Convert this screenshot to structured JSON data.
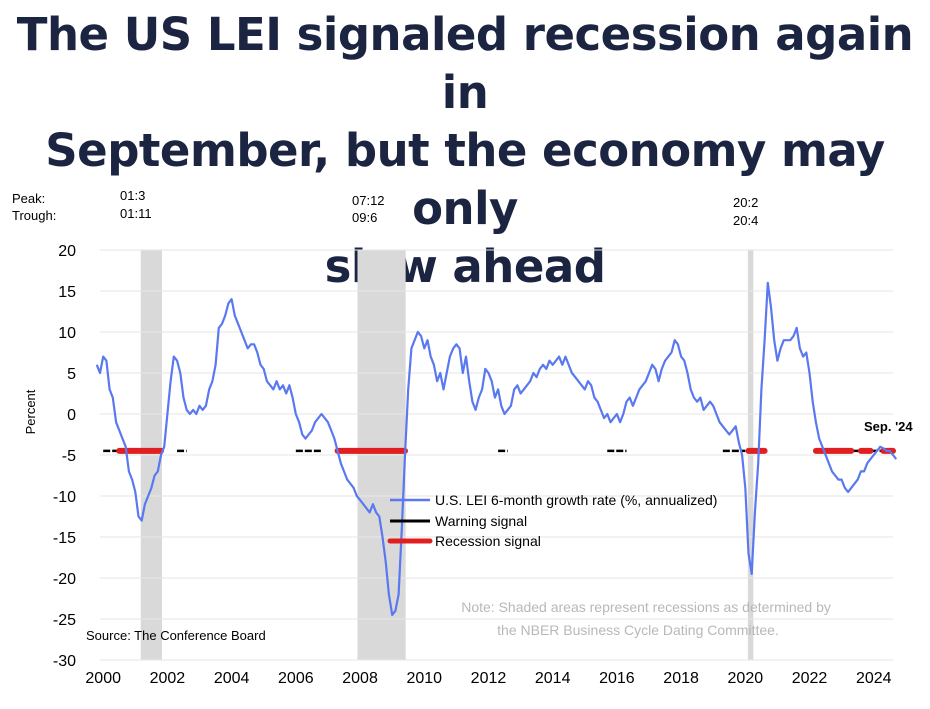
{
  "title": "The US LEI signaled recession again in\nSeptember, but the economy may only\nslow ahead",
  "recession_header": {
    "peak_label": "Peak:",
    "trough_label": "Trough:"
  },
  "colors": {
    "title": "#1b2440",
    "lei": "#5a78f0",
    "warning": "#000000",
    "recession_signal": "#e02020",
    "shade": "#d9d9d9"
  },
  "source": "Source: The Conference Board",
  "note": "Note: Shaded areas represent recessions as determined by\nthe NBER Business Cycle Dating Committee.",
  "end_annotation": "Sep. '24",
  "chart_data": {
    "type": "line",
    "ylabel": "Percent",
    "xlabel": "",
    "ylim": [
      -30,
      20
    ],
    "xlim": [
      2000,
      2025
    ],
    "yticks": [
      20,
      15,
      10,
      5,
      0,
      -5,
      -10,
      -15,
      -20,
      -25,
      -30
    ],
    "xticks": [
      2000,
      2002,
      2004,
      2006,
      2008,
      2010,
      2012,
      2014,
      2016,
      2018,
      2020,
      2022,
      2024
    ],
    "grid": "horizontal",
    "legend_position": "center-right",
    "recessions": [
      {
        "peak": "01:3",
        "trough": "01:11",
        "start": 2001.17,
        "end": 2001.83
      },
      {
        "peak": "07:12",
        "trough": "09:6",
        "start": 2007.92,
        "end": 2009.42
      },
      {
        "peak": "20:2",
        "trough": "20:4",
        "start": 2020.08,
        "end": 2020.25
      }
    ],
    "series": [
      {
        "name": "U.S. LEI 6-month growth rate (%, annualized)",
        "type": "line",
        "points": [
          [
            1999.8,
            6
          ],
          [
            1999.9,
            5
          ],
          [
            2000.0,
            7
          ],
          [
            2000.1,
            6.5
          ],
          [
            2000.2,
            3
          ],
          [
            2000.3,
            2
          ],
          [
            2000.4,
            -1
          ],
          [
            2000.5,
            -2
          ],
          [
            2000.6,
            -3
          ],
          [
            2000.7,
            -4
          ],
          [
            2000.8,
            -7
          ],
          [
            2000.9,
            -8
          ],
          [
            2001.0,
            -9.5
          ],
          [
            2001.1,
            -12.5
          ],
          [
            2001.2,
            -13
          ],
          [
            2001.3,
            -11
          ],
          [
            2001.4,
            -10
          ],
          [
            2001.5,
            -9
          ],
          [
            2001.6,
            -7.5
          ],
          [
            2001.7,
            -7
          ],
          [
            2001.8,
            -5
          ],
          [
            2001.9,
            -4
          ],
          [
            2002.0,
            0
          ],
          [
            2002.1,
            4
          ],
          [
            2002.2,
            7
          ],
          [
            2002.3,
            6.5
          ],
          [
            2002.4,
            5
          ],
          [
            2002.5,
            2
          ],
          [
            2002.6,
            0.5
          ],
          [
            2002.7,
            0
          ],
          [
            2002.8,
            0.5
          ],
          [
            2002.9,
            0
          ],
          [
            2003.0,
            1
          ],
          [
            2003.1,
            0.5
          ],
          [
            2003.2,
            1
          ],
          [
            2003.3,
            3
          ],
          [
            2003.4,
            4
          ],
          [
            2003.5,
            6
          ],
          [
            2003.6,
            10.5
          ],
          [
            2003.7,
            11
          ],
          [
            2003.8,
            12
          ],
          [
            2003.9,
            13.5
          ],
          [
            2004.0,
            14
          ],
          [
            2004.1,
            12
          ],
          [
            2004.2,
            11
          ],
          [
            2004.3,
            10
          ],
          [
            2004.4,
            9
          ],
          [
            2004.5,
            8
          ],
          [
            2004.6,
            8.5
          ],
          [
            2004.7,
            8.5
          ],
          [
            2004.8,
            7.5
          ],
          [
            2004.9,
            6
          ],
          [
            2005.0,
            5.5
          ],
          [
            2005.1,
            4
          ],
          [
            2005.2,
            3.5
          ],
          [
            2005.3,
            3
          ],
          [
            2005.4,
            4
          ],
          [
            2005.5,
            3
          ],
          [
            2005.6,
            3.5
          ],
          [
            2005.7,
            2.5
          ],
          [
            2005.8,
            3.5
          ],
          [
            2005.9,
            2
          ],
          [
            2006.0,
            0
          ],
          [
            2006.1,
            -1
          ],
          [
            2006.2,
            -2.5
          ],
          [
            2006.3,
            -3
          ],
          [
            2006.4,
            -2.5
          ],
          [
            2006.5,
            -2
          ],
          [
            2006.6,
            -1
          ],
          [
            2006.7,
            -0.5
          ],
          [
            2006.8,
            0
          ],
          [
            2006.9,
            -0.5
          ],
          [
            2007.0,
            -1
          ],
          [
            2007.1,
            -2
          ],
          [
            2007.2,
            -3
          ],
          [
            2007.3,
            -4.5
          ],
          [
            2007.4,
            -6
          ],
          [
            2007.5,
            -7
          ],
          [
            2007.6,
            -8
          ],
          [
            2007.7,
            -8.5
          ],
          [
            2007.8,
            -9
          ],
          [
            2007.9,
            -10
          ],
          [
            2008.0,
            -10.5
          ],
          [
            2008.1,
            -11
          ],
          [
            2008.2,
            -11.5
          ],
          [
            2008.3,
            -12
          ],
          [
            2008.4,
            -11
          ],
          [
            2008.5,
            -12
          ],
          [
            2008.6,
            -12.5
          ],
          [
            2008.7,
            -15
          ],
          [
            2008.8,
            -18
          ],
          [
            2008.9,
            -22
          ],
          [
            2009.0,
            -24.5
          ],
          [
            2009.1,
            -24
          ],
          [
            2009.2,
            -22
          ],
          [
            2009.3,
            -14
          ],
          [
            2009.4,
            -5
          ],
          [
            2009.5,
            3
          ],
          [
            2009.6,
            8
          ],
          [
            2009.7,
            9
          ],
          [
            2009.8,
            10
          ],
          [
            2009.9,
            9.5
          ],
          [
            2010.0,
            8
          ],
          [
            2010.1,
            9
          ],
          [
            2010.2,
            7
          ],
          [
            2010.3,
            6
          ],
          [
            2010.4,
            4
          ],
          [
            2010.5,
            5
          ],
          [
            2010.6,
            3
          ],
          [
            2010.7,
            5
          ],
          [
            2010.8,
            7
          ],
          [
            2010.9,
            8
          ],
          [
            2011.0,
            8.5
          ],
          [
            2011.1,
            8
          ],
          [
            2011.2,
            5
          ],
          [
            2011.3,
            7
          ],
          [
            2011.4,
            4
          ],
          [
            2011.5,
            1.5
          ],
          [
            2011.6,
            0.5
          ],
          [
            2011.7,
            2
          ],
          [
            2011.8,
            3
          ],
          [
            2011.9,
            5.5
          ],
          [
            2012.0,
            5
          ],
          [
            2012.1,
            4
          ],
          [
            2012.2,
            2
          ],
          [
            2012.3,
            3
          ],
          [
            2012.4,
            1
          ],
          [
            2012.5,
            0
          ],
          [
            2012.6,
            0.5
          ],
          [
            2012.7,
            1
          ],
          [
            2012.8,
            3
          ],
          [
            2012.9,
            3.5
          ],
          [
            2013.0,
            2.5
          ],
          [
            2013.1,
            3
          ],
          [
            2013.2,
            3.5
          ],
          [
            2013.3,
            4
          ],
          [
            2013.4,
            5
          ],
          [
            2013.5,
            4.5
          ],
          [
            2013.6,
            5.5
          ],
          [
            2013.7,
            6
          ],
          [
            2013.8,
            5.5
          ],
          [
            2013.9,
            6.5
          ],
          [
            2014.0,
            6
          ],
          [
            2014.1,
            6.5
          ],
          [
            2014.2,
            7
          ],
          [
            2014.3,
            6
          ],
          [
            2014.4,
            7
          ],
          [
            2014.5,
            6
          ],
          [
            2014.6,
            5
          ],
          [
            2014.7,
            4.5
          ],
          [
            2014.8,
            4
          ],
          [
            2014.9,
            3.5
          ],
          [
            2015.0,
            3
          ],
          [
            2015.1,
            4
          ],
          [
            2015.2,
            3.5
          ],
          [
            2015.3,
            2
          ],
          [
            2015.4,
            1.5
          ],
          [
            2015.5,
            0.5
          ],
          [
            2015.6,
            -0.5
          ],
          [
            2015.7,
            0
          ],
          [
            2015.8,
            -1
          ],
          [
            2015.9,
            -0.5
          ],
          [
            2016.0,
            0
          ],
          [
            2016.1,
            -1
          ],
          [
            2016.2,
            0
          ],
          [
            2016.3,
            1.5
          ],
          [
            2016.4,
            2
          ],
          [
            2016.5,
            1
          ],
          [
            2016.6,
            2
          ],
          [
            2016.7,
            3
          ],
          [
            2016.8,
            3.5
          ],
          [
            2016.9,
            4
          ],
          [
            2017.0,
            5
          ],
          [
            2017.1,
            6
          ],
          [
            2017.2,
            5.5
          ],
          [
            2017.3,
            4
          ],
          [
            2017.4,
            5.5
          ],
          [
            2017.5,
            6.5
          ],
          [
            2017.6,
            7
          ],
          [
            2017.7,
            7.5
          ],
          [
            2017.8,
            9
          ],
          [
            2017.9,
            8.5
          ],
          [
            2018.0,
            7
          ],
          [
            2018.1,
            6.5
          ],
          [
            2018.2,
            5
          ],
          [
            2018.3,
            3
          ],
          [
            2018.4,
            2
          ],
          [
            2018.5,
            1.5
          ],
          [
            2018.6,
            2
          ],
          [
            2018.7,
            0.5
          ],
          [
            2018.8,
            1
          ],
          [
            2018.9,
            1.5
          ],
          [
            2019.0,
            1
          ],
          [
            2019.1,
            0
          ],
          [
            2019.2,
            -1
          ],
          [
            2019.3,
            -1.5
          ],
          [
            2019.4,
            -2
          ],
          [
            2019.5,
            -2.5
          ],
          [
            2019.6,
            -2
          ],
          [
            2019.7,
            -1.5
          ],
          [
            2019.8,
            -3.5
          ],
          [
            2019.9,
            -5
          ],
          [
            2020.0,
            -9
          ],
          [
            2020.1,
            -17
          ],
          [
            2020.2,
            -19.5
          ],
          [
            2020.3,
            -12
          ],
          [
            2020.4,
            -6
          ],
          [
            2020.5,
            3
          ],
          [
            2020.6,
            9
          ],
          [
            2020.7,
            16
          ],
          [
            2020.8,
            13
          ],
          [
            2020.9,
            9
          ],
          [
            2021.0,
            6.5
          ],
          [
            2021.1,
            8
          ],
          [
            2021.2,
            9
          ],
          [
            2021.3,
            9
          ],
          [
            2021.4,
            9
          ],
          [
            2021.5,
            9.5
          ],
          [
            2021.6,
            10.5
          ],
          [
            2021.7,
            8
          ],
          [
            2021.8,
            7
          ],
          [
            2021.9,
            7.5
          ],
          [
            2022.0,
            5
          ],
          [
            2022.1,
            1.5
          ],
          [
            2022.2,
            -1
          ],
          [
            2022.3,
            -3
          ],
          [
            2022.4,
            -4
          ],
          [
            2022.5,
            -5
          ],
          [
            2022.6,
            -6
          ],
          [
            2022.7,
            -7
          ],
          [
            2022.8,
            -7.5
          ],
          [
            2022.9,
            -8
          ],
          [
            2023.0,
            -8
          ],
          [
            2023.1,
            -9
          ],
          [
            2023.2,
            -9.5
          ],
          [
            2023.3,
            -9
          ],
          [
            2023.4,
            -8.5
          ],
          [
            2023.5,
            -8
          ],
          [
            2023.6,
            -7
          ],
          [
            2023.7,
            -7
          ],
          [
            2023.8,
            -6
          ],
          [
            2023.9,
            -5.5
          ],
          [
            2024.0,
            -5
          ],
          [
            2024.1,
            -4.5
          ],
          [
            2024.2,
            -4
          ],
          [
            2024.3,
            -4.2
          ],
          [
            2024.4,
            -4.5
          ],
          [
            2024.5,
            -4.5
          ],
          [
            2024.6,
            -5
          ],
          [
            2024.7,
            -5.5
          ]
        ]
      },
      {
        "name": "Warning signal",
        "type": "segments",
        "ranges": [
          [
            2000.0,
            2001.5
          ],
          [
            2002.3,
            2002.6
          ],
          [
            2006.0,
            2006.8
          ],
          [
            2012.3,
            2012.6
          ],
          [
            2015.7,
            2016.3
          ],
          [
            2019.3,
            2020.0
          ],
          [
            2023.3,
            2023.6
          ],
          [
            2023.9,
            2024.3
          ]
        ]
      },
      {
        "name": "Recession signal",
        "type": "segments",
        "ranges": [
          [
            2000.5,
            2001.8
          ],
          [
            2007.3,
            2009.4
          ],
          [
            2020.1,
            2020.6
          ],
          [
            2022.2,
            2023.3
          ],
          [
            2023.6,
            2023.9
          ],
          [
            2024.3,
            2024.6
          ]
        ]
      }
    ]
  }
}
